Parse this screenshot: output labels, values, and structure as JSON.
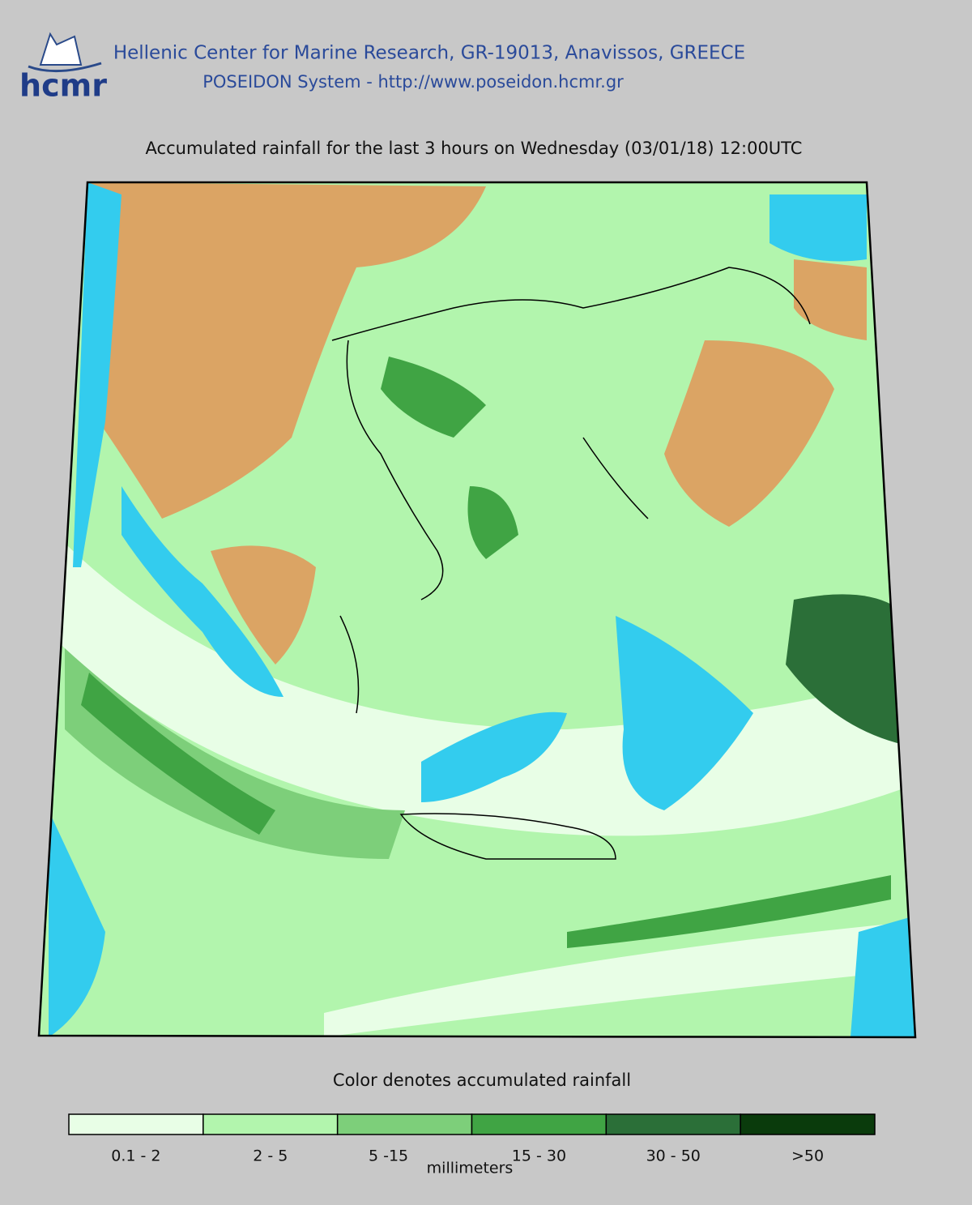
{
  "header": {
    "logo": "hcmr",
    "organization": "Hellenic Center for Marine Research, GR-19013, Anavissos, GREECE",
    "system": "POSEIDON System - http://www.poseidon.hcmr.gr"
  },
  "title": "Accumulated rainfall for the last 3 hours on Wednesday (03/01/18) 12:00UTC",
  "legend": {
    "caption": "Color denotes accumulated rainfall",
    "unit": "millimeters",
    "items": [
      {
        "label": "0.1 - 2",
        "color": "#e8fee6"
      },
      {
        "label": "2 - 5",
        "color": "#b2f5ad"
      },
      {
        "label": "5 -15",
        "color": "#7dcf7a"
      },
      {
        "label": "15 - 30",
        "color": "#40a444"
      },
      {
        "label": "30 - 50",
        "color": "#2b6f38"
      },
      {
        "label": ">50",
        "color": "#0a3b0c"
      }
    ]
  }
}
